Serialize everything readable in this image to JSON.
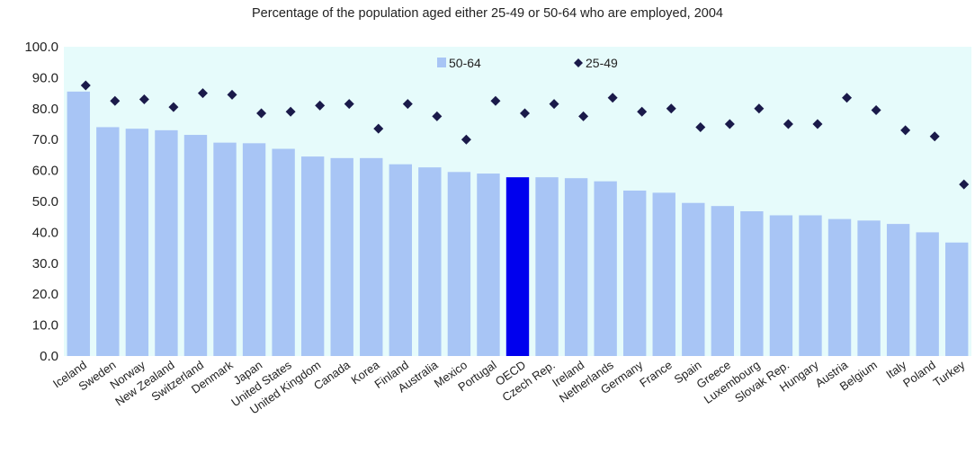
{
  "chart_data": {
    "type": "bar",
    "title": "Percentage of the population aged either 25-49 or 50-64 who are employed, 2004",
    "categories": [
      "Iceland",
      "Sweden",
      "Norway",
      "New Zealand",
      "Switzerland",
      "Denmark",
      "Japan",
      "United States",
      "United Kingdom",
      "Canada",
      "Korea",
      "Finland",
      "Australia",
      "Mexico",
      "Portugal",
      "OECD",
      "Czech Rep.",
      "Ireland",
      "Netherlands",
      "Germany",
      "France",
      "Spain",
      "Greece",
      "Luxembourg",
      "Slovak Rep.",
      "Hungary",
      "Austria",
      "Belgium",
      "Italy",
      "Poland",
      "Turkey"
    ],
    "series": [
      {
        "name": "50-64",
        "kind": "bar",
        "values": [
          85.5,
          74,
          73.5,
          73,
          71.5,
          69,
          68.8,
          67,
          64.5,
          64,
          64,
          62,
          61,
          59.5,
          59,
          57.8,
          57.8,
          57.5,
          56.5,
          53.5,
          52.8,
          49.5,
          48.5,
          46.8,
          45.5,
          45.5,
          44.3,
          43.8,
          42.7,
          40,
          36.7
        ],
        "color": "#a8c5f5",
        "highlight": {
          "category": "OECD",
          "color": "#0000ee"
        }
      },
      {
        "name": "25-49",
        "kind": "marker",
        "values": [
          87.5,
          82.5,
          83,
          80.5,
          85,
          84.5,
          78.5,
          79,
          81,
          81.5,
          73.5,
          81.5,
          77.5,
          70,
          82.5,
          78.5,
          81.5,
          77.5,
          83.5,
          79,
          80,
          74,
          75,
          80,
          75,
          75,
          83.5,
          79.5,
          73,
          71,
          55.5
        ],
        "color": "#1a1a4a"
      }
    ],
    "ylim": [
      0,
      100
    ],
    "yticks": [
      "0.0",
      "10.0",
      "20.0",
      "30.0",
      "40.0",
      "50.0",
      "60.0",
      "70.0",
      "80.0",
      "90.0",
      "100.0"
    ],
    "xlabel": "",
    "ylabel": "",
    "grid": false,
    "legend": "top-center",
    "plot_background": "#e6fbfb"
  }
}
